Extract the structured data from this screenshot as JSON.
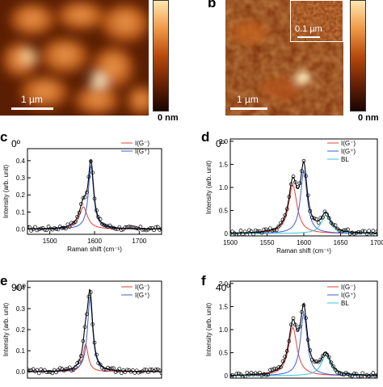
{
  "panels": {
    "a": {
      "letter": "a",
      "scalebar": "1 µm",
      "colorbar_min": "0 nm"
    },
    "b": {
      "letter": "b",
      "scalebar": "1 µm",
      "inset_scalebar": "0.1 µm",
      "colorbar_min": "0 nm"
    },
    "c": {
      "letter": "c",
      "angle": "0º"
    },
    "d": {
      "letter": "d",
      "angle": "0º"
    },
    "e": {
      "letter": "e",
      "angle": "90º"
    },
    "f": {
      "letter": "f",
      "angle": "40º"
    }
  },
  "colors": {
    "afm_dark": "#1a0500",
    "afm_mid": "#b84a0c",
    "afm_light": "#ffe7b0",
    "red": "#e8403a",
    "blue": "#3f5fd8",
    "cyan": "#35c8d8",
    "black": "#000000"
  },
  "chart_data": [
    {
      "id": "c",
      "type": "line",
      "xlabel": "Raman shift (cm⁻¹)",
      "ylabel": "Intensity (arb. unit)",
      "xlim": [
        1450,
        1750
      ],
      "ylim": [
        -0.03,
        0.47
      ],
      "xticks": [
        1500,
        1600,
        1700
      ],
      "yticks": [
        0.0,
        0.1,
        0.2,
        0.3,
        0.4
      ],
      "legend": [
        "I(G⁻)",
        "I(G⁺)"
      ],
      "peaks": [
        {
          "name": "I(G⁻)",
          "color": "red",
          "center": 1575,
          "width": 22,
          "height": 0.13
        },
        {
          "name": "I(G⁺)",
          "color": "blue",
          "center": 1592,
          "width": 14,
          "height": 0.37
        }
      ]
    },
    {
      "id": "d",
      "type": "line",
      "xlabel": "Raman shift (cm⁻¹)",
      "ylabel": "Intensity (arb. unit)",
      "xlim": [
        1500,
        1700
      ],
      "ylim": [
        -0.05,
        2.05
      ],
      "xticks": [
        1500,
        1550,
        1600,
        1650,
        1700
      ],
      "yticks": [
        0,
        0.5,
        1.0,
        1.5,
        2.0
      ],
      "legend": [
        "I(G⁻)",
        "I(G⁺)",
        "BL"
      ],
      "peaks": [
        {
          "name": "I(G⁻)",
          "color": "red",
          "center": 1585,
          "width": 14,
          "height": 1.05
        },
        {
          "name": "I(G⁺)",
          "color": "blue",
          "center": 1600,
          "width": 11,
          "height": 1.35
        },
        {
          "name": "BL",
          "color": "cyan",
          "center": 1630,
          "width": 15,
          "height": 0.4
        }
      ]
    },
    {
      "id": "e",
      "type": "line",
      "xlabel": "",
      "ylabel": "Intensity (arb. unit)",
      "xlim": [
        1450,
        1750
      ],
      "ylim": [
        -0.03,
        0.43
      ],
      "xticks": [],
      "yticks": [
        0.0,
        0.1,
        0.2,
        0.3,
        0.4
      ],
      "legend": [
        "I(G⁻)",
        "I(G⁺)"
      ],
      "peaks": [
        {
          "name": "I(G⁻)",
          "color": "red",
          "center": 1580,
          "width": 14,
          "height": 0.13
        },
        {
          "name": "I(G⁺)",
          "color": "blue",
          "center": 1590,
          "width": 14,
          "height": 0.35
        }
      ]
    },
    {
      "id": "f",
      "type": "line",
      "xlabel": "",
      "ylabel": "Intensity (arb. unit)",
      "xlim": [
        1500,
        1700
      ],
      "ylim": [
        -0.05,
        2.05
      ],
      "xticks": [],
      "yticks": [
        0,
        0.5,
        1.0,
        1.5,
        2.0
      ],
      "legend": [
        "I(G⁻)",
        "I(G⁺)",
        "BL"
      ],
      "peaks": [
        {
          "name": "I(G⁻)",
          "color": "red",
          "center": 1585,
          "width": 14,
          "height": 1.05
        },
        {
          "name": "I(G⁺)",
          "color": "blue",
          "center": 1600,
          "width": 11,
          "height": 1.35
        },
        {
          "name": "BL",
          "color": "cyan",
          "center": 1630,
          "width": 15,
          "height": 0.45
        }
      ]
    }
  ]
}
